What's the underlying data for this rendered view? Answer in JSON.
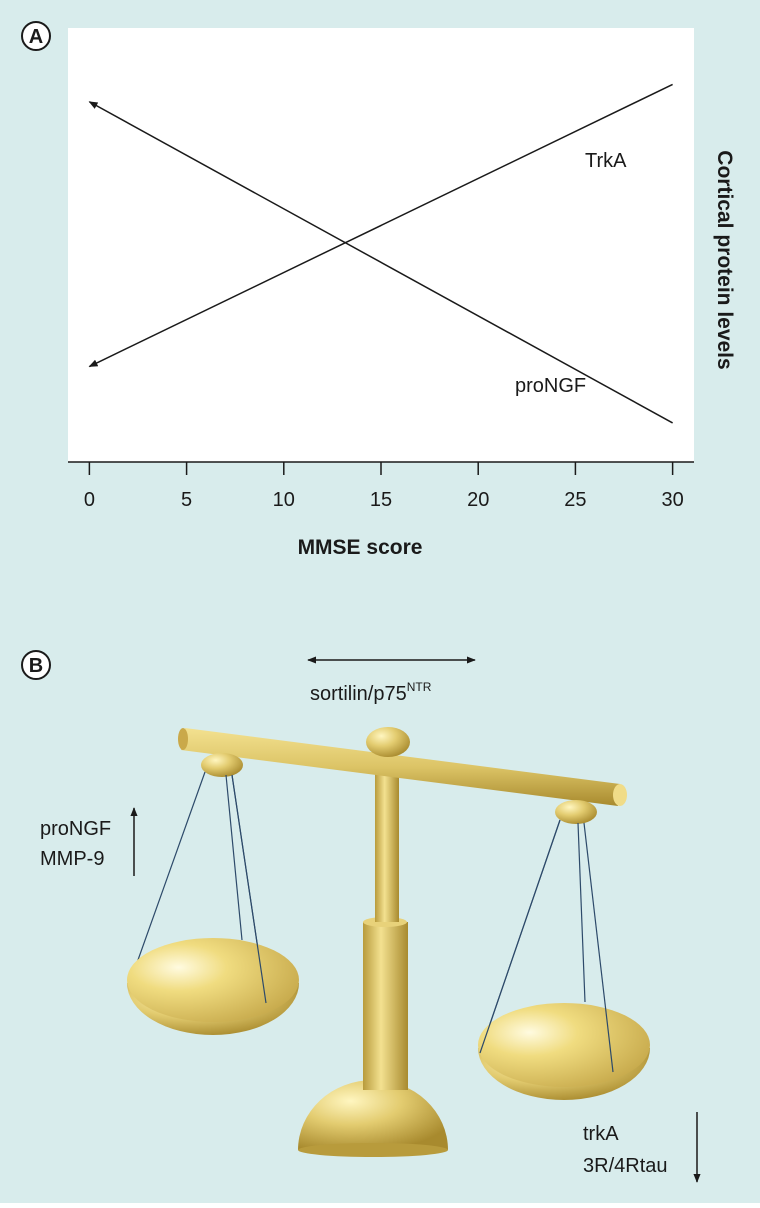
{
  "chart_data": {
    "type": "line",
    "x": [
      0,
      30
    ],
    "series": [
      {
        "name": "TrkA",
        "color": "#1a1a1a",
        "values": [
          22,
          87
        ]
      },
      {
        "name": "proNGF",
        "color": "#1a1a1a",
        "values": [
          83,
          9
        ]
      }
    ],
    "xlim": [
      -1.1,
      31.1
    ],
    "xticks": [
      0,
      5,
      10,
      15,
      20,
      25,
      30
    ],
    "ylim": [
      0,
      100
    ],
    "xlabel": "MMSE score",
    "ylabel": "Cortical protein levels"
  },
  "panel_labels": [
    "A",
    "B"
  ],
  "panel_b": {
    "balance_label": "sortilin/p75",
    "balance_label_sup": "NTR",
    "left_labels": [
      "proNGF",
      "MMP-9"
    ],
    "right_labels": [
      "trkA",
      "3R/4Rtau"
    ]
  }
}
